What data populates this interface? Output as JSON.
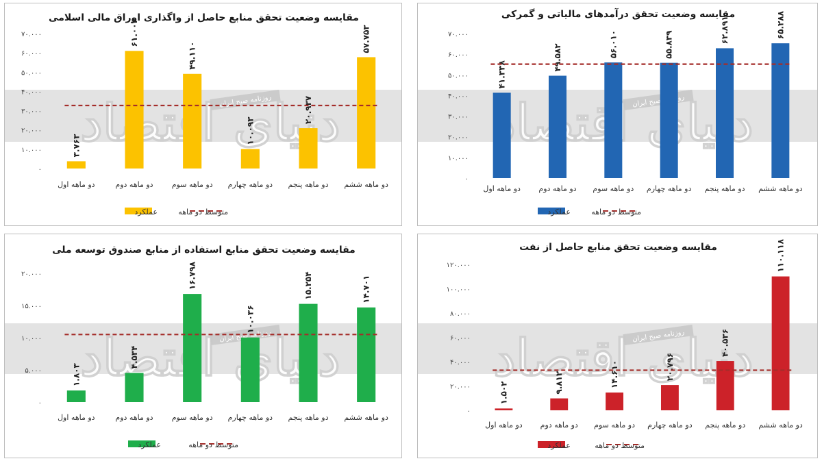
{
  "colors": {
    "avg_line": "#a42d2a",
    "watermark_band": "#d9d9d9"
  },
  "watermark": {
    "main_text": "دنیای اقتصاد",
    "small_text": "روزنامه صبح ایران"
  },
  "chart_data": [
    {
      "type": "bar",
      "title": "مقایسه وضعیت تحقق منابع حاصل از واگذاری اوراق مالی اسلامی",
      "categories": [
        "دو ماهه اول",
        "دو ماهه دوم",
        "دو ماهه سوم",
        "دو ماهه چهارم",
        "دو ماهه پنجم",
        "دو ماهه ششم"
      ],
      "series": [
        {
          "name": "عملکرد",
          "values": [
            3763,
            61004,
            49110,
            10093,
            20937,
            57753
          ],
          "color": "#fcc200"
        },
        {
          "name": "متوسط دو ماهه",
          "kind": "dashed-line",
          "value": 32700
        }
      ],
      "data_labels": [
        "۳.۷۶۳",
        "۶۱.۰۰۴",
        "۴۹.۱۱۰",
        "۱۰.۰۹۳",
        "۲۰.۹۳۷",
        "۵۷.۷۵۳"
      ],
      "ylim": [
        0,
        70000
      ],
      "yticks": [
        0,
        10000,
        20000,
        30000,
        40000,
        50000,
        60000,
        70000
      ],
      "ytick_labels": [
        "۰",
        "۱۰.۰۰۰",
        "۲۰.۰۰۰",
        "۳۰.۰۰۰",
        "۴۰.۰۰۰",
        "۵۰.۰۰۰",
        "۶۰.۰۰۰",
        "۷۰.۰۰۰"
      ],
      "legend": [
        {
          "label": "عملکرد",
          "kind": "bar"
        },
        {
          "label": "متوسط دو ماهه",
          "kind": "dashed"
        }
      ],
      "legend_placement": "bottom",
      "grid": false
    },
    {
      "type": "bar",
      "title": "مقایسه وضعیت تحقق درآمدهای مالیاتی و گمرکی",
      "categories": [
        "دو ماهه اول",
        "دو ماهه دوم",
        "دو ماهه سوم",
        "دو ماهه چهارم",
        "دو ماهه پنجم",
        "دو ماهه ششم"
      ],
      "series": [
        {
          "name": "عملکرد",
          "values": [
            41338,
            49582,
            56010,
            55839,
            62891,
            65288
          ],
          "color": "#2266b3"
        },
        {
          "name": "متوسط دو ماهه",
          "kind": "dashed-line",
          "value": 55200
        }
      ],
      "data_labels": [
        "۴۱.۳۳۸",
        "۴۹.۵۸۲",
        "۵۶.۰۱۰",
        "۵۵.۸۳۹",
        "۶۲.۸۹۱",
        "۶۵.۲۸۸"
      ],
      "ylim": [
        0,
        70000
      ],
      "yticks": [
        0,
        10000,
        20000,
        30000,
        40000,
        50000,
        60000,
        70000
      ],
      "ytick_labels": [
        "۰",
        "۱۰.۰۰۰",
        "۲۰.۰۰۰",
        "۳۰.۰۰۰",
        "۴۰.۰۰۰",
        "۵۰.۰۰۰",
        "۶۰.۰۰۰",
        "۷۰.۰۰۰"
      ],
      "legend": [
        {
          "label": "عملکرد",
          "kind": "bar"
        },
        {
          "label": "متوسط دو ماهه",
          "kind": "dashed"
        }
      ],
      "legend_placement": "bottom",
      "grid": false
    },
    {
      "type": "bar",
      "title": "مقایسه وضعیت تحقق منابع استفاده از منابع صندوق توسعه ملی",
      "categories": [
        "دو ماهه اول",
        "دو ماهه دوم",
        "دو ماهه سوم",
        "دو ماهه چهارم",
        "دو ماهه پنجم",
        "دو ماهه ششم"
      ],
      "series": [
        {
          "name": "عملکرد",
          "values": [
            1803,
            4534,
            16798,
            10036,
            15254,
            14701
          ],
          "color": "#1fae4b"
        },
        {
          "name": "متوسط دو ماهه",
          "kind": "dashed-line",
          "value": 10500
        }
      ],
      "data_labels": [
        "۱.۸۰۳",
        "۴.۵۳۴",
        "۱۶.۷۹۸",
        "۱۰.۰۳۶",
        "۱۵.۲۵۴",
        "۱۴.۷۰۱"
      ],
      "ylim": [
        0,
        20000
      ],
      "yticks": [
        0,
        5000,
        10000,
        15000,
        20000
      ],
      "ytick_labels": [
        "۰",
        "۵.۰۰۰",
        "۱۰.۰۰۰",
        "۱۵.۰۰۰",
        "۲۰.۰۰۰"
      ],
      "legend": [
        {
          "label": "عملکرد",
          "kind": "bar"
        },
        {
          "label": "متوسط دو ماهه",
          "kind": "dashed"
        }
      ],
      "legend_placement": "bottom",
      "grid": false
    },
    {
      "type": "bar",
      "title": "مقایسه وضعیت تحقق منابع حاصل از نفت",
      "categories": [
        "دو ماهه اول",
        "دو ماهه دوم",
        "دو ماهه سوم",
        "دو ماهه چهارم",
        "دو ماهه پنجم",
        "دو ماهه ششم"
      ],
      "series": [
        {
          "name": "عملکرد",
          "values": [
            1502,
            9812,
            14610,
            20796,
            40536,
            110118
          ],
          "color": "#cc2229"
        },
        {
          "name": "متوسط دو ماهه",
          "kind": "dashed-line",
          "value": 33000
        }
      ],
      "data_labels": [
        "۱.۵۰۲",
        "۹.۸۱۲",
        "۱۴.۶۱۰",
        "۲۰.۷۹۶",
        "۴۰.۵۳۶",
        "۱۱۰.۱۱۸"
      ],
      "ylim": [
        0,
        120000
      ],
      "yticks": [
        0,
        20000,
        40000,
        60000,
        80000,
        100000,
        120000
      ],
      "ytick_labels": [
        "۰",
        "۲۰.۰۰۰",
        "۴۰.۰۰۰",
        "۶۰.۰۰۰",
        "۸۰.۰۰۰",
        "۱۰۰.۰۰۰",
        "۱۲۰.۰۰۰"
      ],
      "legend": [
        {
          "label": "عملکرد",
          "kind": "bar"
        },
        {
          "label": "متوسط دو ماهه",
          "kind": "dashed"
        }
      ],
      "legend_placement": "bottom",
      "grid": false
    }
  ]
}
